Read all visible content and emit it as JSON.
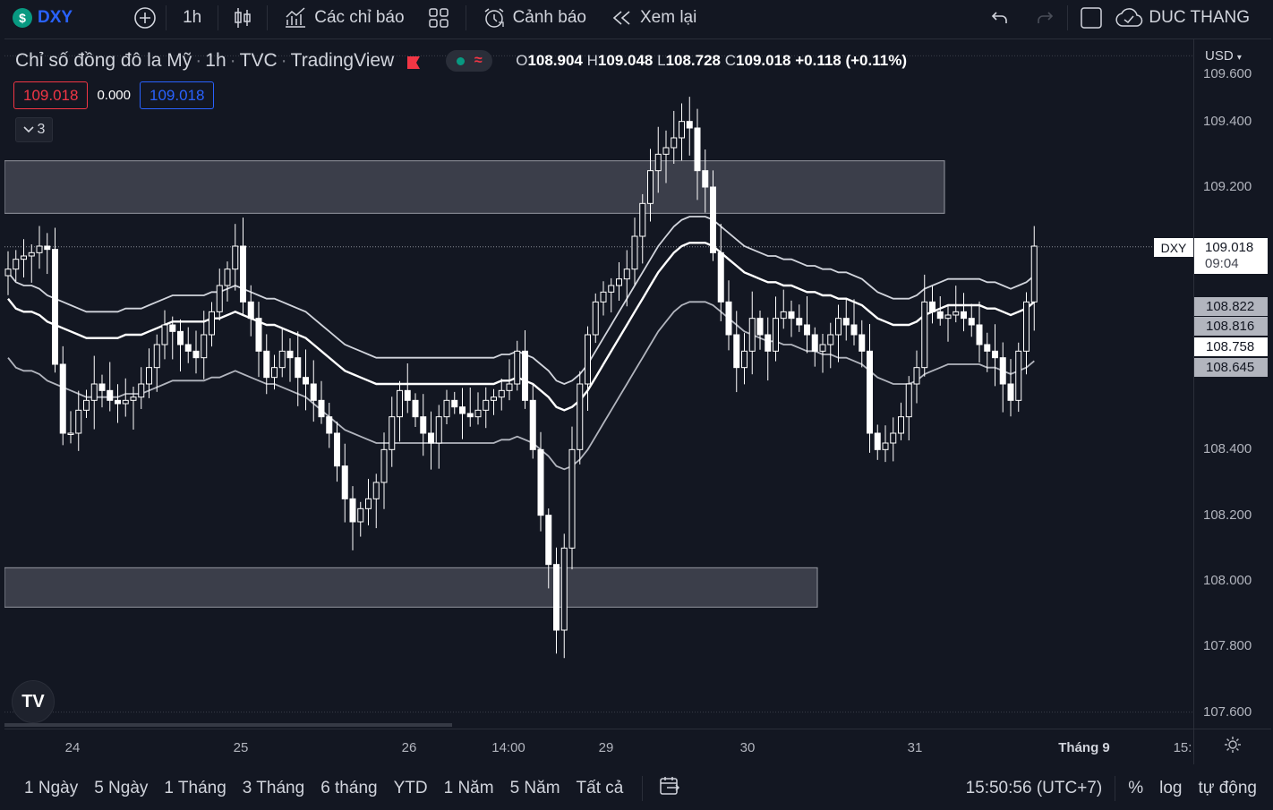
{
  "toolbar": {
    "symbol": "DXY",
    "symbol_badge": "$",
    "interval": "1h",
    "indicators_label": "Các chỉ báo",
    "alert_label": "Cảnh báo",
    "replay_label": "Xem lại",
    "user_name": "DUC THANG"
  },
  "legend": {
    "title": "Chỉ số đồng đô la Mỹ",
    "interval": "1h",
    "exchange": "TVC",
    "source": "TradingView",
    "o_key": "O",
    "o_val": "108.904",
    "h_key": "H",
    "h_val": "109.048",
    "l_key": "L",
    "l_val": "108.728",
    "c_key": "C",
    "c_val": "109.018",
    "change": "+0.118 (+0.11%)",
    "pill_glyph": "≈"
  },
  "quote": {
    "sell": "109.018",
    "spread": "0.000",
    "buy": "109.018"
  },
  "indicators_collapsed": {
    "count": "3"
  },
  "price_axis": {
    "currency": "USD",
    "labels": [
      "109.600",
      "109.400",
      "109.200",
      "108.400",
      "108.200",
      "108.000",
      "107.800",
      "107.600"
    ],
    "last_symbol": "DXY",
    "last_price": "109.018",
    "countdown": "09:04",
    "band_labels": [
      "108.822",
      "108.816",
      "108.758",
      "108.645"
    ]
  },
  "time_axis": {
    "labels": [
      "24",
      "25",
      "26",
      "14:00",
      "29",
      "30",
      "31",
      "Tháng 9",
      "15:"
    ]
  },
  "bottom": {
    "ranges": [
      "1 Ngày",
      "5 Ngày",
      "1 Tháng",
      "3 Tháng",
      "6 tháng",
      "YTD",
      "1 Năm",
      "5 Năm",
      "Tất cả"
    ],
    "clock": "15:50:56 (UTC+7)",
    "percent": "%",
    "log": "log",
    "auto": "tự động"
  },
  "tv_logo": "TV",
  "colors": {
    "background": "#131722",
    "accent": "#2962ff",
    "up": "#089981",
    "down": "#f23645",
    "candle": "#ffffff",
    "zone": "#363a45"
  },
  "chart_data": {
    "type": "candlestick",
    "y_axis_range": [
      107.55,
      109.65
    ],
    "price_zones": [
      [
        109.12,
        109.28
      ],
      [
        107.92,
        108.04
      ]
    ],
    "last_price": 109.018,
    "series": [
      {
        "values": [
          108.95,
          108.98,
          108.99,
          109.0,
          109.02,
          109.01,
          108.66,
          108.45,
          108.45,
          108.52,
          108.55,
          108.6,
          108.58,
          108.55,
          108.54,
          108.55,
          108.56,
          108.6,
          108.65,
          108.72,
          108.78,
          108.76,
          108.72,
          108.7,
          108.68,
          108.75,
          108.82,
          108.9,
          108.95,
          109.02,
          108.85,
          108.8,
          108.7,
          108.62,
          108.65,
          108.7,
          108.68,
          108.62,
          108.6,
          108.55,
          108.5,
          108.45,
          108.35,
          108.25,
          108.18,
          108.22,
          108.25,
          108.3,
          108.4,
          108.5,
          108.58,
          108.55,
          108.5,
          108.45,
          108.42,
          108.5,
          108.55,
          108.53,
          108.51,
          108.5,
          108.52,
          108.55,
          108.56,
          108.58,
          108.6,
          108.7,
          108.55,
          108.4,
          108.2,
          108.05,
          107.85,
          108.1,
          108.4,
          108.6,
          108.75,
          108.85,
          108.88,
          108.9,
          108.92,
          108.95,
          109.05,
          109.15,
          109.25,
          109.3,
          109.32,
          109.35,
          109.4,
          109.38,
          109.25,
          109.2,
          109.0,
          108.85,
          108.75,
          108.65,
          108.7,
          108.8,
          108.75,
          108.7,
          108.8,
          108.82,
          108.8,
          108.78,
          108.75,
          108.7,
          108.72,
          108.75,
          108.8,
          108.78,
          108.75,
          108.7,
          108.45,
          108.4,
          108.42,
          108.45,
          108.5,
          108.6,
          108.65,
          108.85,
          108.82,
          108.8,
          108.81,
          108.82,
          108.8,
          108.78,
          108.72,
          108.7,
          108.68,
          108.6,
          108.55,
          108.7,
          108.85,
          109.02
        ]
      },
      {
        "values": [
          108.78,
          108.75,
          108.74,
          108.74,
          108.73,
          108.71,
          108.7,
          108.69,
          108.68,
          108.67,
          108.66,
          108.66,
          108.66,
          108.66,
          108.66,
          108.67,
          108.67,
          108.67,
          108.68,
          108.69,
          108.7,
          108.71,
          108.71,
          108.71,
          108.71,
          108.71,
          108.72,
          108.72,
          108.73,
          108.74,
          108.73,
          108.72,
          108.71,
          108.7,
          108.7,
          108.69,
          108.68,
          108.67,
          108.66,
          108.64,
          108.62,
          108.6,
          108.58,
          108.56,
          108.55,
          108.54,
          108.53,
          108.52,
          108.52,
          108.52,
          108.52,
          108.52,
          108.52,
          108.52,
          108.52,
          108.52,
          108.52,
          108.52,
          108.52,
          108.52,
          108.52,
          108.52,
          108.52,
          108.53,
          108.53,
          108.54,
          108.53,
          108.52,
          108.5,
          108.48,
          108.45,
          108.44,
          108.45,
          108.47,
          108.5,
          108.54,
          108.58,
          108.62,
          108.66,
          108.7,
          108.74,
          108.78,
          108.82,
          108.86,
          108.89,
          108.92,
          108.94,
          108.95,
          108.95,
          108.95,
          108.94,
          108.92,
          108.9,
          108.88,
          108.86,
          108.85,
          108.84,
          108.83,
          108.83,
          108.82,
          108.82,
          108.81,
          108.8,
          108.8,
          108.79,
          108.79,
          108.78,
          108.78,
          108.77,
          108.76,
          108.74,
          108.72,
          108.71,
          108.7,
          108.7,
          108.7,
          108.71,
          108.73,
          108.74,
          108.75,
          108.76,
          108.76,
          108.76,
          108.76,
          108.76,
          108.75,
          108.75,
          108.74,
          108.73,
          108.74,
          108.75,
          108.77
        ]
      }
    ]
  }
}
